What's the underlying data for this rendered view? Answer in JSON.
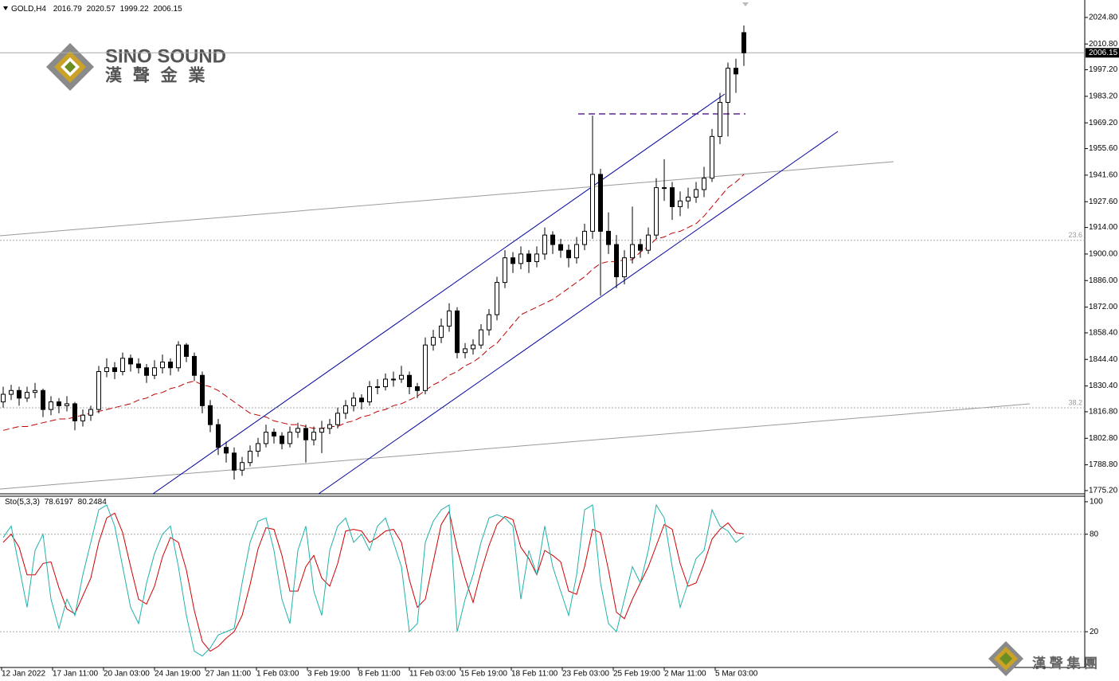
{
  "chart_data": {
    "type": "candlestick",
    "title": "GOLD,H4",
    "candles": [
      [
        1822,
        1830,
        1819,
        1826
      ],
      [
        1826,
        1831,
        1823,
        1828
      ],
      [
        1828,
        1830,
        1820,
        1824
      ],
      [
        1824,
        1830,
        1822,
        1827
      ],
      [
        1827,
        1832,
        1824,
        1828
      ],
      [
        1828,
        1829,
        1814,
        1818
      ],
      [
        1818,
        1825,
        1815,
        1822
      ],
      [
        1822,
        1824,
        1816,
        1820
      ],
      [
        1820,
        1825,
        1817,
        1821
      ],
      [
        1821,
        1822,
        1807,
        1812
      ],
      [
        1812,
        1818,
        1809,
        1815
      ],
      [
        1815,
        1820,
        1812,
        1818
      ],
      [
        1818,
        1841,
        1816,
        1838
      ],
      [
        1838,
        1845,
        1835,
        1840
      ],
      [
        1840,
        1843,
        1834,
        1838
      ],
      [
        1838,
        1848,
        1836,
        1845
      ],
      [
        1845,
        1847,
        1838,
        1842
      ],
      [
        1842,
        1845,
        1837,
        1840
      ],
      [
        1840,
        1842,
        1832,
        1836
      ],
      [
        1836,
        1844,
        1834,
        1840
      ],
      [
        1840,
        1847,
        1837,
        1843
      ],
      [
        1843,
        1845,
        1836,
        1840
      ],
      [
        1840,
        1854,
        1838,
        1852
      ],
      [
        1852,
        1853,
        1843,
        1846
      ],
      [
        1846,
        1848,
        1833,
        1836
      ],
      [
        1836,
        1838,
        1816,
        1820
      ],
      [
        1820,
        1823,
        1806,
        1810
      ],
      [
        1810,
        1813,
        1794,
        1798
      ],
      [
        1798,
        1801,
        1790,
        1795
      ],
      [
        1795,
        1798,
        1781,
        1786
      ],
      [
        1786,
        1793,
        1783,
        1790
      ],
      [
        1790,
        1799,
        1788,
        1796
      ],
      [
        1796,
        1803,
        1793,
        1800
      ],
      [
        1800,
        1810,
        1798,
        1806
      ],
      [
        1806,
        1808,
        1800,
        1804
      ],
      [
        1804,
        1806,
        1797,
        1800
      ],
      [
        1800,
        1809,
        1798,
        1806
      ],
      [
        1806,
        1811,
        1803,
        1808
      ],
      [
        1808,
        1810,
        1790,
        1802
      ],
      [
        1802,
        1809,
        1799,
        1806
      ],
      [
        1806,
        1812,
        1795,
        1808
      ],
      [
        1808,
        1813,
        1805,
        1810
      ],
      [
        1810,
        1819,
        1808,
        1816
      ],
      [
        1816,
        1823,
        1813,
        1820
      ],
      [
        1820,
        1827,
        1817,
        1824
      ],
      [
        1824,
        1826,
        1818,
        1822
      ],
      [
        1822,
        1833,
        1820,
        1830
      ],
      [
        1830,
        1834,
        1826,
        1830
      ],
      [
        1830,
        1837,
        1828,
        1834
      ],
      [
        1834,
        1838,
        1830,
        1834
      ],
      [
        1834,
        1841,
        1832,
        1836
      ],
      [
        1836,
        1838,
        1826,
        1830
      ],
      [
        1830,
        1832,
        1824,
        1828
      ],
      [
        1828,
        1856,
        1826,
        1852
      ],
      [
        1852,
        1860,
        1849,
        1856
      ],
      [
        1856,
        1866,
        1853,
        1862
      ],
      [
        1862,
        1874,
        1859,
        1870
      ],
      [
        1870,
        1872,
        1845,
        1848
      ],
      [
        1848,
        1853,
        1845,
        1850
      ],
      [
        1850,
        1855,
        1847,
        1852
      ],
      [
        1852,
        1863,
        1850,
        1860
      ],
      [
        1860,
        1871,
        1857,
        1868
      ],
      [
        1868,
        1888,
        1865,
        1885
      ],
      [
        1885,
        1902,
        1882,
        1898
      ],
      [
        1898,
        1901,
        1890,
        1895
      ],
      [
        1895,
        1904,
        1892,
        1900
      ],
      [
        1900,
        1902,
        1890,
        1896
      ],
      [
        1896,
        1904,
        1893,
        1900
      ],
      [
        1900,
        1914,
        1897,
        1910
      ],
      [
        1910,
        1912,
        1900,
        1905
      ],
      [
        1905,
        1908,
        1898,
        1902
      ],
      [
        1902,
        1905,
        1893,
        1898
      ],
      [
        1898,
        1909,
        1895,
        1905
      ],
      [
        1905,
        1916,
        1902,
        1912
      ],
      [
        1912,
        1973,
        1908,
        1942
      ],
      [
        1942,
        1945,
        1878,
        1912
      ],
      [
        1912,
        1922,
        1900,
        1905
      ],
      [
        1905,
        1910,
        1882,
        1888
      ],
      [
        1888,
        1902,
        1884,
        1898
      ],
      [
        1898,
        1925,
        1895,
        1905
      ],
      [
        1905,
        1908,
        1898,
        1902
      ],
      [
        1902,
        1914,
        1900,
        1910
      ],
      [
        1910,
        1940,
        1908,
        1935
      ],
      [
        1935,
        1950,
        1928,
        1935
      ],
      [
        1935,
        1938,
        1918,
        1925
      ],
      [
        1925,
        1933,
        1920,
        1928
      ],
      [
        1928,
        1935,
        1924,
        1930
      ],
      [
        1930,
        1938,
        1927,
        1934
      ],
      [
        1934,
        1946,
        1930,
        1940
      ],
      [
        1940,
        1966,
        1938,
        1962
      ],
      [
        1962,
        1985,
        1958,
        1980
      ],
      [
        1980,
        2001,
        1962,
        1998
      ],
      [
        1998,
        2003,
        1985,
        1995
      ],
      [
        2016.79,
        2020.57,
        1999.22,
        2006.15
      ]
    ],
    "ma": [
      1807,
      1808,
      1809,
      1809,
      1810,
      1811,
      1812,
      1813,
      1813,
      1814,
      1815,
      1816,
      1817,
      1818,
      1819,
      1820,
      1821,
      1823,
      1824,
      1826,
      1827,
      1829,
      1830,
      1832,
      1833,
      1831,
      1830,
      1828,
      1825,
      1822,
      1819,
      1816,
      1815,
      1814,
      1812,
      1811,
      1810,
      1810,
      1809,
      1808,
      1808,
      1809,
      1809,
      1811,
      1812,
      1814,
      1815,
      1817,
      1818,
      1820,
      1821,
      1823,
      1825,
      1828,
      1831,
      1833,
      1836,
      1838,
      1841,
      1843,
      1846,
      1850,
      1853,
      1858,
      1863,
      1868,
      1870,
      1872,
      1874,
      1876,
      1879,
      1882,
      1885,
      1888,
      1892,
      1895,
      1896,
      1896,
      1897,
      1897,
      1901,
      1904,
      1908,
      1909,
      1911,
      1912,
      1914,
      1916,
      1920,
      1925,
      1930,
      1935,
      1938,
      1942
    ],
    "ylim": [
      1773.5,
      2034
    ],
    "yticks": [
      {
        "value": 2024.8,
        "label": "2024.80"
      },
      {
        "value": 2010.8,
        "label": "2010.80"
      },
      {
        "value": 1997.2,
        "label": "1997.20"
      },
      {
        "value": 1983.2,
        "label": "1983.20"
      },
      {
        "value": 1969.2,
        "label": "1969.20"
      },
      {
        "value": 1955.6,
        "label": "1955.60"
      },
      {
        "value": 1941.6,
        "label": "1941.60"
      },
      {
        "value": 1927.6,
        "label": "1927.60"
      },
      {
        "value": 1914,
        "label": "1914.00"
      },
      {
        "value": 1900,
        "label": "1900.00"
      },
      {
        "value": 1886,
        "label": "1886.00"
      },
      {
        "value": 1872,
        "label": "1872.00"
      },
      {
        "value": 1858.4,
        "label": "1858.40"
      },
      {
        "value": 1844.4,
        "label": "1844.40"
      },
      {
        "value": 1830.4,
        "label": "1830.40"
      },
      {
        "value": 1816.8,
        "label": "1816.80"
      },
      {
        "value": 1802.8,
        "label": "1802.80"
      },
      {
        "value": 1788.8,
        "label": "1788.80"
      },
      {
        "value": 1775.2,
        "label": "1775.20"
      }
    ],
    "levels": [
      {
        "value": 1907.2,
        "label": "23.6"
      },
      {
        "value": 1818.9,
        "label": "38.2"
      }
    ],
    "xlabels": [
      "12 Jan 2022",
      "17 Jan 11:00",
      "20 Jan 03:00",
      "24 Jan 19:00",
      "27 Jan 11:00",
      "1 Feb 03:00",
      "3 Feb 19:00",
      "8 Feb 11:00",
      "11 Feb 03:00",
      "15 Feb 19:00",
      "18 Feb 11:00",
      "23 Feb 03:00",
      "25 Feb 19:00",
      "2 Mar 11:00",
      "5 Mar 03:00"
    ],
    "stoch": {
      "title": "Sto(5,3,3)",
      "main": [
        78,
        85,
        60,
        35,
        70,
        80,
        40,
        22,
        40,
        30,
        55,
        75,
        95,
        98,
        85,
        60,
        35,
        25,
        50,
        68,
        80,
        85,
        60,
        30,
        8,
        5,
        10,
        18,
        20,
        22,
        50,
        75,
        88,
        90,
        70,
        40,
        25,
        70,
        85,
        45,
        30,
        70,
        85,
        90,
        75,
        80,
        70,
        85,
        90,
        75,
        60,
        20,
        25,
        75,
        88,
        95,
        98,
        20,
        40,
        55,
        75,
        90,
        92,
        90,
        85,
        40,
        70,
        55,
        85,
        60,
        45,
        30,
        55,
        95,
        98,
        50,
        25,
        20,
        40,
        60,
        50,
        70,
        98,
        90,
        60,
        35,
        50,
        65,
        70,
        95,
        85,
        82,
        75,
        78.6197
      ],
      "signal": [
        75,
        80,
        72,
        55,
        55,
        62,
        63,
        47,
        34,
        31,
        42,
        53,
        75,
        90,
        93,
        81,
        60,
        40,
        37,
        48,
        66,
        78,
        75,
        58,
        33,
        14,
        8,
        11,
        16,
        20,
        30,
        49,
        71,
        84,
        83,
        67,
        45,
        45,
        60,
        67,
        53,
        48,
        62,
        82,
        83,
        82,
        75,
        78,
        82,
        83,
        75,
        52,
        35,
        40,
        63,
        86,
        94,
        71,
        53,
        38,
        57,
        73,
        86,
        91,
        89,
        72,
        65,
        55,
        70,
        67,
        63,
        45,
        43,
        60,
        83,
        81,
        58,
        32,
        28,
        40,
        50,
        60,
        73,
        86,
        83,
        62,
        48,
        50,
        62,
        77,
        83,
        87,
        81,
        80.2484
      ],
      "main_color": "#20b2aa",
      "signal_color": "#d00000",
      "ylim": [
        -2,
        103.4
      ],
      "yticks": [
        100,
        80,
        20
      ],
      "levels": [
        80,
        20
      ]
    },
    "watermark": {
      "brand": "SINO SOUND",
      "chinese": "漢 聲 金 業",
      "group": "漢 聲 集 團"
    }
  }
}
